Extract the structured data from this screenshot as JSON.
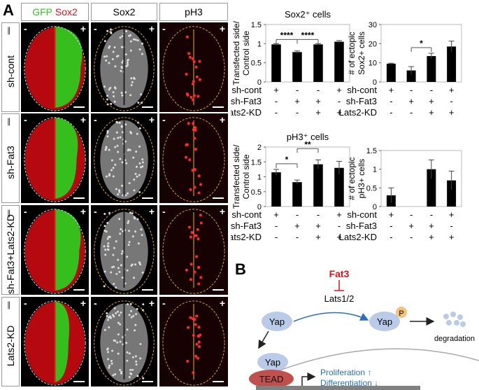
{
  "panel_a_label": "A",
  "panel_b_label": "B",
  "column_headers": {
    "gfp": "GFP",
    "sox2_red": "Sox2",
    "sox2": "Sox2",
    "ph3": "pH3"
  },
  "rows": [
    {
      "label": "sh-cont",
      "minus": "-",
      "plus": "+"
    },
    {
      "label": "sh-Fat3",
      "minus": "-",
      "plus": "+"
    },
    {
      "label": "sh-Fat3+Lats2-KD",
      "minus": "-",
      "plus": "+"
    },
    {
      "label": "Lats2-KD",
      "minus": "-",
      "plus": "+"
    }
  ],
  "colors": {
    "gfp": "#2ec81e",
    "sox2": "#e0101a",
    "bar": "#000000",
    "yap": "#b9cbe8",
    "tead": "#c0504d",
    "fat3": "#e0101a",
    "blue_text": "#2f6fb6"
  },
  "conditions": {
    "labels": [
      "sh-cont",
      "sh-Fat3",
      "Lats2-KD"
    ],
    "matrix": [
      [
        "+",
        "-",
        "-",
        "+"
      ],
      [
        "-",
        "+",
        "+",
        "-"
      ],
      [
        "-",
        "-",
        "+",
        "+"
      ]
    ]
  },
  "chart_data": [
    {
      "type": "bar",
      "title": "Sox2⁺ cells",
      "ylabel": "Transfected side/ Control side",
      "ylim": [
        0,
        1.5
      ],
      "yticks": [
        "0",
        "0.5",
        "1",
        "1.5"
      ],
      "values": [
        0.98,
        0.78,
        0.98,
        1.05
      ],
      "errors": [
        0.02,
        0.03,
        0.02,
        0.03
      ],
      "significance": [
        {
          "label": "****",
          "from": 0,
          "to": 1
        },
        {
          "label": "****",
          "from": 1,
          "to": 2
        }
      ]
    },
    {
      "type": "bar",
      "title": "",
      "ylabel": "# of ectopic Sox2+ cells",
      "ylim": [
        0,
        30
      ],
      "yticks": [
        "0",
        "10",
        "20",
        "30"
      ],
      "values": [
        9.5,
        6,
        13.5,
        18.5
      ],
      "errors": [
        0.3,
        2,
        1.5,
        2.8
      ],
      "significance": [
        {
          "label": "*",
          "from": 1,
          "to": 2
        }
      ]
    },
    {
      "type": "bar",
      "title": "pH3⁺ cells",
      "ylabel": "Transfected side/ Control side",
      "ylim": [
        0,
        2
      ],
      "yticks": [
        "0",
        "0.5",
        "1",
        "1.5",
        "2"
      ],
      "values": [
        1.15,
        0.82,
        1.42,
        1.3
      ],
      "errors": [
        0.1,
        0.07,
        0.15,
        0.22
      ],
      "significance": [
        {
          "label": "*",
          "from": 0,
          "to": 1
        },
        {
          "label": "**",
          "from": 1,
          "to": 2
        }
      ]
    },
    {
      "type": "bar",
      "title": "",
      "ylabel": "# of ectopic pH3+ cells",
      "ylim": [
        0,
        1.5
      ],
      "yticks": [
        "0",
        "0.5",
        "1",
        "1.5"
      ],
      "values": [
        0.3,
        0,
        1,
        0.7
      ],
      "errors": [
        0.2,
        0,
        0.25,
        0.25
      ],
      "significance": []
    }
  ],
  "diagram": {
    "fat3": "Fat3",
    "lats": "Lats1/2",
    "yap": "Yap",
    "p": "P",
    "degradation": "degradation",
    "tead": "TEAD",
    "proliferation": "Proliferation ↑",
    "differentiation": "Differentiation ↓"
  }
}
